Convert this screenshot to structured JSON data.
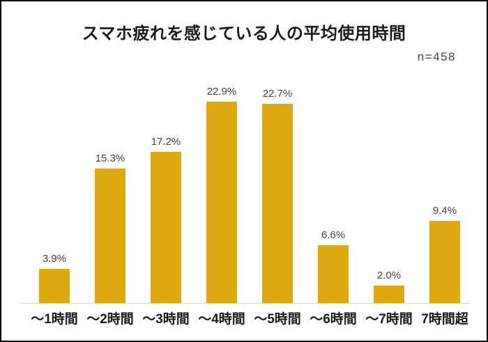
{
  "page": {
    "title": "スマホ疲れを感じている人の平均使用時間",
    "sample_size_label": "n=458"
  },
  "chart_data": {
    "type": "bar",
    "title": "スマホ疲れを感じている人の平均使用時間",
    "annotation": "n=458",
    "categories": [
      "～1時間",
      "～2時間",
      "～3時間",
      "～4時間",
      "～5時間",
      "～6時間",
      "～7時間",
      "7時間超"
    ],
    "values": [
      3.9,
      15.3,
      17.2,
      22.9,
      22.7,
      6.6,
      2.0,
      9.4
    ],
    "value_labels": [
      "3.9%",
      "15.3%",
      "17.2%",
      "22.9%",
      "22.7%",
      "6.6%",
      "2.0%",
      "9.4%"
    ],
    "unit": "%",
    "xlabel": "",
    "ylabel": "",
    "ylim": [
      0,
      25
    ],
    "grid": false,
    "legend": false,
    "bar_color": "#dea90f",
    "value_label_color": "#41414f",
    "category_label_color": "#1a1a1a",
    "axis_line_color": "#d9d9d9",
    "frame_border_color": "#000000"
  }
}
